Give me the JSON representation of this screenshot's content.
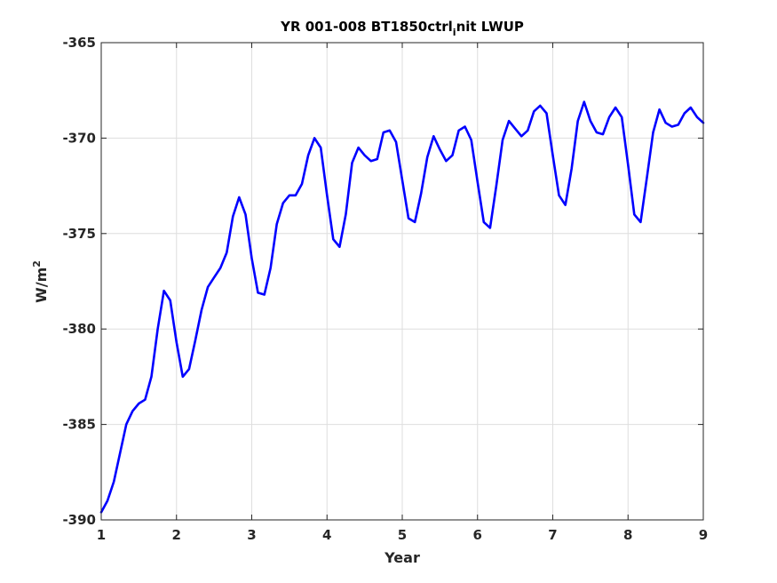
{
  "chart_data": {
    "type": "line",
    "title_main": "YR 001-008 BT1850ctrl",
    "title_subscript": "i",
    "title_suffix": "nit LWUP",
    "xlabel": "Year",
    "ylabel_base": "W/m",
    "ylabel_superscript": "2",
    "xlim": [
      1,
      9
    ],
    "ylim": [
      -390,
      -365
    ],
    "xticks": [
      1,
      2,
      3,
      4,
      5,
      6,
      7,
      8,
      9
    ],
    "xtick_labels": [
      "1",
      "2",
      "3",
      "4",
      "5",
      "6",
      "7",
      "8",
      "9"
    ],
    "yticks": [
      -390,
      -385,
      -380,
      -375,
      -370,
      -365
    ],
    "ytick_labels": [
      "-390",
      "-385",
      "-380",
      "-375",
      "-370",
      "-365"
    ],
    "grid": true,
    "series": [
      {
        "color": "#0000ff",
        "x": [
          1.0,
          1.083,
          1.167,
          1.25,
          1.333,
          1.417,
          1.5,
          1.583,
          1.667,
          1.75,
          1.833,
          1.917,
          2.0,
          2.083,
          2.167,
          2.25,
          2.333,
          2.417,
          2.5,
          2.583,
          2.667,
          2.75,
          2.833,
          2.917,
          3.0,
          3.083,
          3.167,
          3.25,
          3.333,
          3.417,
          3.5,
          3.583,
          3.667,
          3.75,
          3.833,
          3.917,
          4.0,
          4.083,
          4.167,
          4.25,
          4.333,
          4.417,
          4.5,
          4.583,
          4.667,
          4.75,
          4.833,
          4.917,
          5.0,
          5.083,
          5.167,
          5.25,
          5.333,
          5.417,
          5.5,
          5.583,
          5.667,
          5.75,
          5.833,
          5.917,
          6.0,
          6.083,
          6.167,
          6.25,
          6.333,
          6.417,
          6.5,
          6.583,
          6.667,
          6.75,
          6.833,
          6.917,
          7.0,
          7.083,
          7.167,
          7.25,
          7.333,
          7.417,
          7.5,
          7.583,
          7.667,
          7.75,
          7.833,
          7.917,
          8.0,
          8.083,
          8.167,
          8.25,
          8.333,
          8.417,
          8.5,
          8.583,
          8.667,
          8.75,
          8.833,
          8.917,
          9.0
        ],
        "y": [
          -389.6,
          -389.0,
          -388.0,
          -386.5,
          -385.0,
          -384.3,
          -383.9,
          -383.7,
          -382.5,
          -380.0,
          -378.0,
          -378.5,
          -380.7,
          -382.5,
          -382.1,
          -380.6,
          -379.0,
          -377.8,
          -377.3,
          -376.8,
          -376.0,
          -374.1,
          -373.1,
          -374.0,
          -376.3,
          -378.1,
          -378.2,
          -376.8,
          -374.5,
          -373.4,
          -373.0,
          -373.0,
          -372.4,
          -370.9,
          -370.0,
          -370.5,
          -373.0,
          -375.3,
          -375.7,
          -374.0,
          -371.3,
          -370.5,
          -370.9,
          -371.2,
          -371.1,
          -369.7,
          -369.6,
          -370.2,
          -372.2,
          -374.2,
          -374.4,
          -372.9,
          -371.0,
          -369.9,
          -370.6,
          -371.2,
          -370.9,
          -369.6,
          -369.4,
          -370.1,
          -372.3,
          -374.4,
          -374.7,
          -372.5,
          -370.1,
          -369.1,
          -369.5,
          -369.9,
          -369.6,
          -368.6,
          -368.3,
          -368.7,
          -370.9,
          -373.0,
          -373.5,
          -371.6,
          -369.1,
          -368.1,
          -369.1,
          -369.7,
          -369.8,
          -368.9,
          -368.4,
          -368.9,
          -371.4,
          -374.0,
          -374.4,
          -372.1,
          -369.7,
          -368.5,
          -369.2,
          -369.4,
          -369.3,
          -368.7,
          -368.4,
          -368.9,
          -369.2
        ]
      }
    ]
  }
}
